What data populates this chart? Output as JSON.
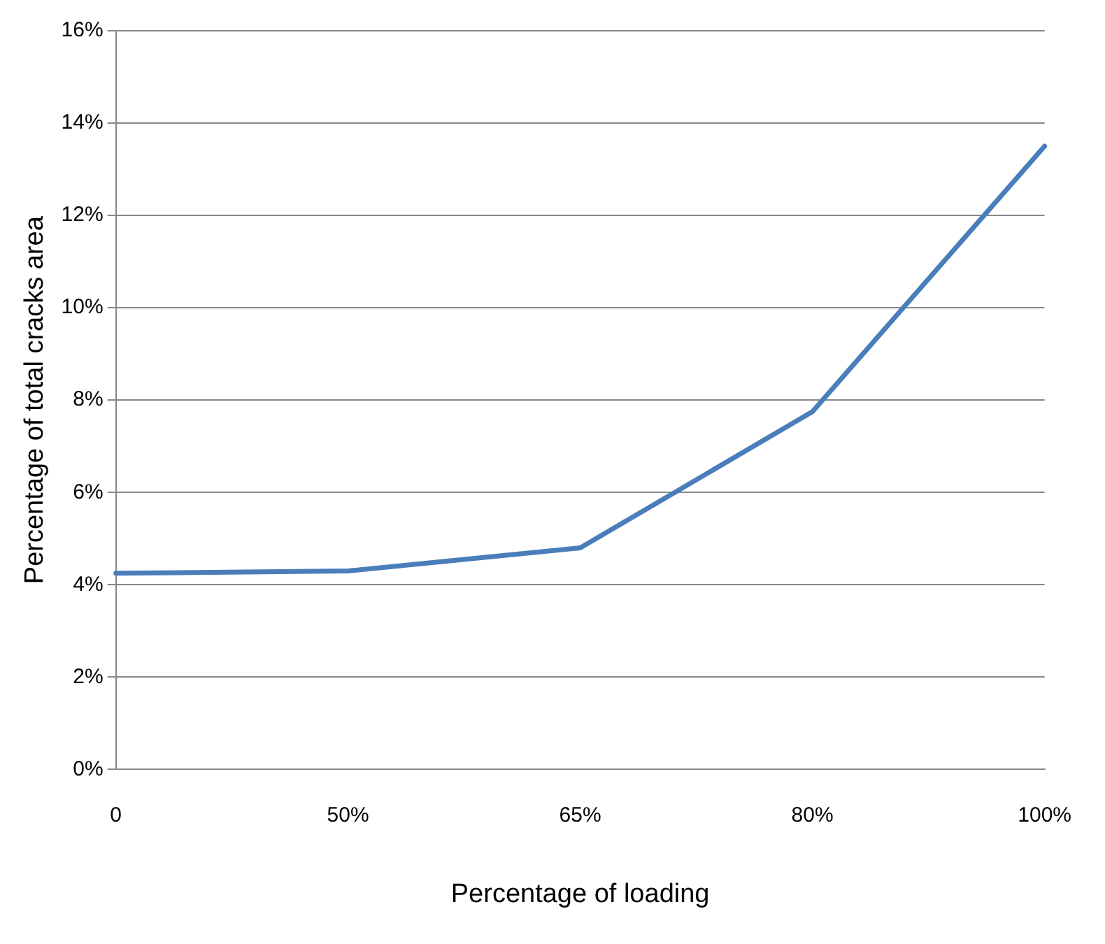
{
  "chart_data": {
    "type": "line",
    "xlabel": "Percentage of loading",
    "ylabel": "Percentage of total cracks area",
    "categories": [
      "0",
      "50%",
      "65%",
      "80%",
      "100%"
    ],
    "series": [
      {
        "color": "#4a7ebb",
        "values": [
          4.25,
          4.3,
          4.8,
          7.75,
          13.5
        ]
      }
    ],
    "ylim": [
      0,
      16
    ],
    "yticks": [
      {
        "value": 0,
        "label": "0%"
      },
      {
        "value": 2,
        "label": "2%"
      },
      {
        "value": 4,
        "label": "4%"
      },
      {
        "value": 6,
        "label": "6%"
      },
      {
        "value": 8,
        "label": "8%"
      },
      {
        "value": 10,
        "label": "10%"
      },
      {
        "value": 12,
        "label": "12%"
      },
      {
        "value": 14,
        "label": "14%"
      },
      {
        "value": 16,
        "label": "16%"
      }
    ],
    "grid": "y",
    "legend": false,
    "marker": "none",
    "line_style": "solid"
  }
}
